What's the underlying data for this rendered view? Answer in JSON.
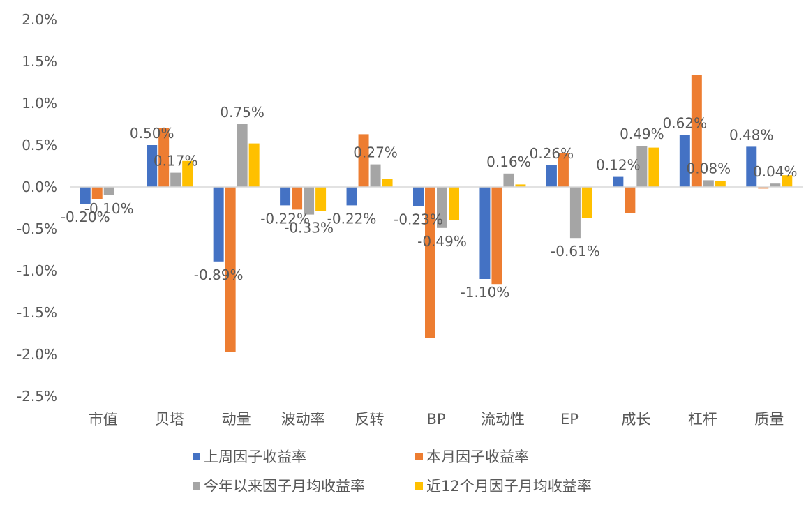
{
  "chart_data": {
    "type": "bar",
    "title": "",
    "xlabel": "",
    "ylabel": "",
    "ylim": [
      -2.5,
      2.0
    ],
    "y_tick_step": 0.5,
    "y_ticks": [
      "2.0%",
      "1.5%",
      "1.0%",
      "0.5%",
      "0.0%",
      "-0.5%",
      "-1.0%",
      "-1.5%",
      "-2.0%",
      "-2.5%"
    ],
    "categories": [
      "市值",
      "贝塔",
      "动量",
      "波动率",
      "反转",
      "BP",
      "流动性",
      "EP",
      "成长",
      "杠杆",
      "质量"
    ],
    "series": [
      {
        "name": "上周因子收益率",
        "color": "#4472C4",
        "values": [
          -0.2,
          0.5,
          -0.89,
          -0.22,
          -0.22,
          -0.23,
          -1.1,
          0.26,
          0.12,
          0.62,
          0.48
        ]
      },
      {
        "name": "本月因子收益率",
        "color": "#ED7D31",
        "values": [
          -0.15,
          0.7,
          -1.97,
          -0.27,
          0.63,
          -1.8,
          -1.16,
          0.4,
          -0.31,
          1.34,
          -0.02
        ]
      },
      {
        "name": "今年以来因子月均收益率",
        "color": "#A5A5A5",
        "values": [
          -0.1,
          0.17,
          0.75,
          -0.33,
          0.27,
          -0.49,
          0.16,
          -0.61,
          0.49,
          0.08,
          0.04
        ]
      },
      {
        "name": "近12个月因子月均收益率",
        "color": "#FFC000",
        "values": [
          0.0,
          0.31,
          0.52,
          -0.29,
          0.1,
          -0.4,
          0.03,
          -0.37,
          0.47,
          0.07,
          0.14
        ]
      }
    ],
    "data_labels": [
      {
        "text": "-0.20%",
        "category": 0,
        "series": 0
      },
      {
        "text": "-0.10%",
        "category": 0,
        "series": 2
      },
      {
        "text": "0.50%",
        "category": 1,
        "series": 0
      },
      {
        "text": "0.17%",
        "category": 1,
        "series": 2
      },
      {
        "text": "0.75%",
        "category": 2,
        "series": 2
      },
      {
        "text": "-0.89%",
        "category": 2,
        "series": 0
      },
      {
        "text": "-0.22%",
        "category": 3,
        "series": 0
      },
      {
        "text": "-0.33%",
        "category": 3,
        "series": 2
      },
      {
        "text": "-0.22%",
        "category": 4,
        "series": 0
      },
      {
        "text": "0.27%",
        "category": 4,
        "series": 2
      },
      {
        "text": "-0.23%",
        "category": 5,
        "series": 0
      },
      {
        "text": "-0.49%",
        "category": 5,
        "series": 2
      },
      {
        "text": "-1.10%",
        "category": 6,
        "series": 0
      },
      {
        "text": "0.16%",
        "category": 6,
        "series": 2
      },
      {
        "text": "0.26%",
        "category": 7,
        "series": 0
      },
      {
        "text": "-0.61%",
        "category": 7,
        "series": 2
      },
      {
        "text": "0.12%",
        "category": 8,
        "series": 0
      },
      {
        "text": "0.49%",
        "category": 8,
        "series": 2
      },
      {
        "text": "0.62%",
        "category": 9,
        "series": 0
      },
      {
        "text": "0.08%",
        "category": 9,
        "series": 2
      },
      {
        "text": "0.48%",
        "category": 10,
        "series": 0
      },
      {
        "text": "0.04%",
        "category": 10,
        "series": 2
      }
    ],
    "legend_position": "bottom",
    "grid": false
  }
}
